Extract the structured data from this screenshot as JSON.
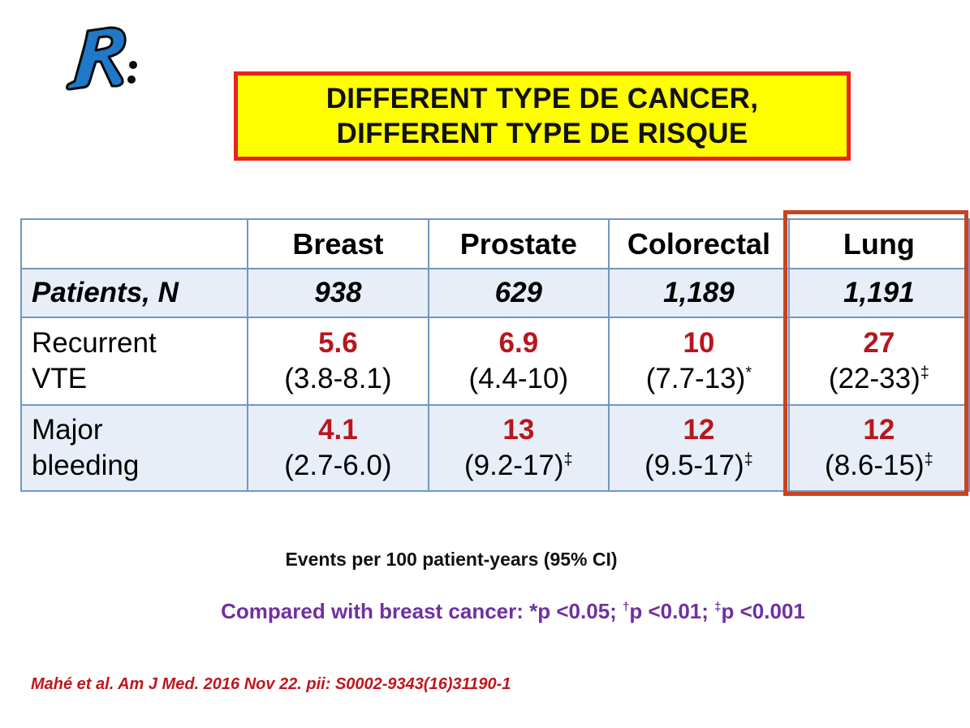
{
  "title": {
    "line1": "DIFFERENT TYPE DE CANCER,",
    "line2": "DIFFERENT TYPE DE RISQUE"
  },
  "logo": {
    "icon": "r-runner-logo",
    "color": "#1f78c8"
  },
  "table": {
    "columns": [
      "",
      "Breast",
      "Prostate",
      "Colorectal",
      "Lung"
    ],
    "patients": {
      "label": "Patients, N",
      "values": [
        "938",
        "629",
        "1,189",
        "1,191"
      ]
    },
    "recurrent_vte": {
      "label_line1": "Recurrent",
      "label_line2": "VTE",
      "values": [
        "5.6",
        "6.9",
        "10",
        "27"
      ],
      "ci": [
        "(3.8-8.1)",
        "(4.4-10)",
        "(7.7-13)",
        "(22-33)"
      ],
      "marks": [
        "",
        "",
        "*",
        "‡"
      ]
    },
    "major_bleeding": {
      "label_line1": "Major",
      "label_line2": "bleeding",
      "values": [
        "4.1",
        "13",
        "12",
        "12"
      ],
      "ci": [
        "(2.7-6.0)",
        "(9.2-17)",
        "(9.5-17)",
        "(8.6-15)"
      ],
      "marks": [
        "",
        "‡",
        "‡",
        "‡"
      ]
    },
    "highlight_color": "#c8441f",
    "value_color": "#b8161d"
  },
  "notes": {
    "events": "Events per 100 patient-years (95% CI)",
    "compared_prefix": "Compared with breast cancer: *p <0.05;  ",
    "dagger": "†",
    "p01": "p <0.01; ",
    "ddagger": "‡",
    "p001": "p <0.001",
    "reference": "Mahé et al. Am J Med. 2016 Nov 22. pii: S0002-9343(16)31190-1"
  }
}
